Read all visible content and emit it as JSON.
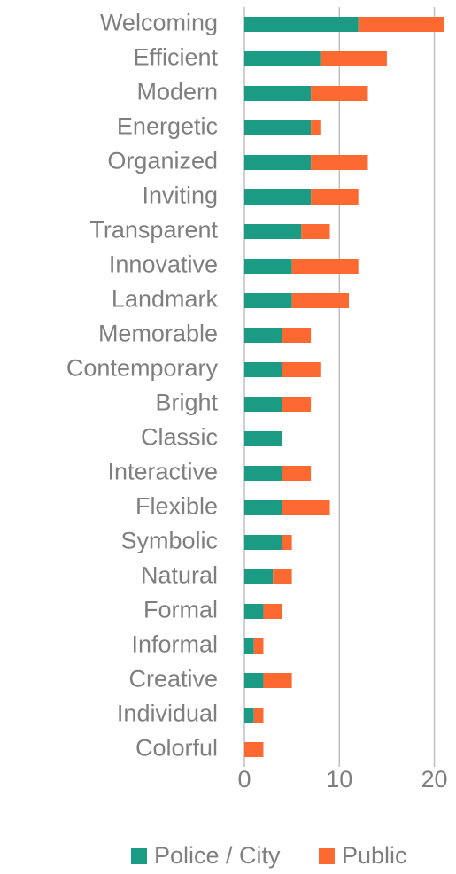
{
  "chart_data": {
    "type": "bar",
    "orientation": "horizontal",
    "stacked": true,
    "categories": [
      "Welcoming",
      "Efficient",
      "Modern",
      "Energetic",
      "Organized",
      "Inviting",
      "Transparent",
      "Innovative",
      "Landmark",
      "Memorable",
      "Contemporary",
      "Bright",
      "Classic",
      "Interactive",
      "Flexible",
      "Symbolic",
      "Natural",
      "Formal",
      "Informal",
      "Creative",
      "Individual",
      "Colorful"
    ],
    "series": [
      {
        "name": "Police / City",
        "color": "#1b9a84",
        "values": [
          12,
          8,
          7,
          7,
          7,
          7,
          6,
          5,
          5,
          4,
          4,
          4,
          4,
          4,
          4,
          4,
          3,
          2,
          1,
          2,
          1,
          0
        ]
      },
      {
        "name": "Public",
        "color": "#fc6a32",
        "values": [
          9,
          7,
          6,
          1,
          6,
          5,
          3,
          7,
          6,
          3,
          4,
          3,
          0,
          3,
          5,
          1,
          2,
          2,
          1,
          3,
          1,
          2
        ]
      }
    ],
    "xlim": [
      0,
      22
    ],
    "xticks": [
      0,
      10,
      20
    ],
    "grid": true,
    "legend": "bottom"
  }
}
